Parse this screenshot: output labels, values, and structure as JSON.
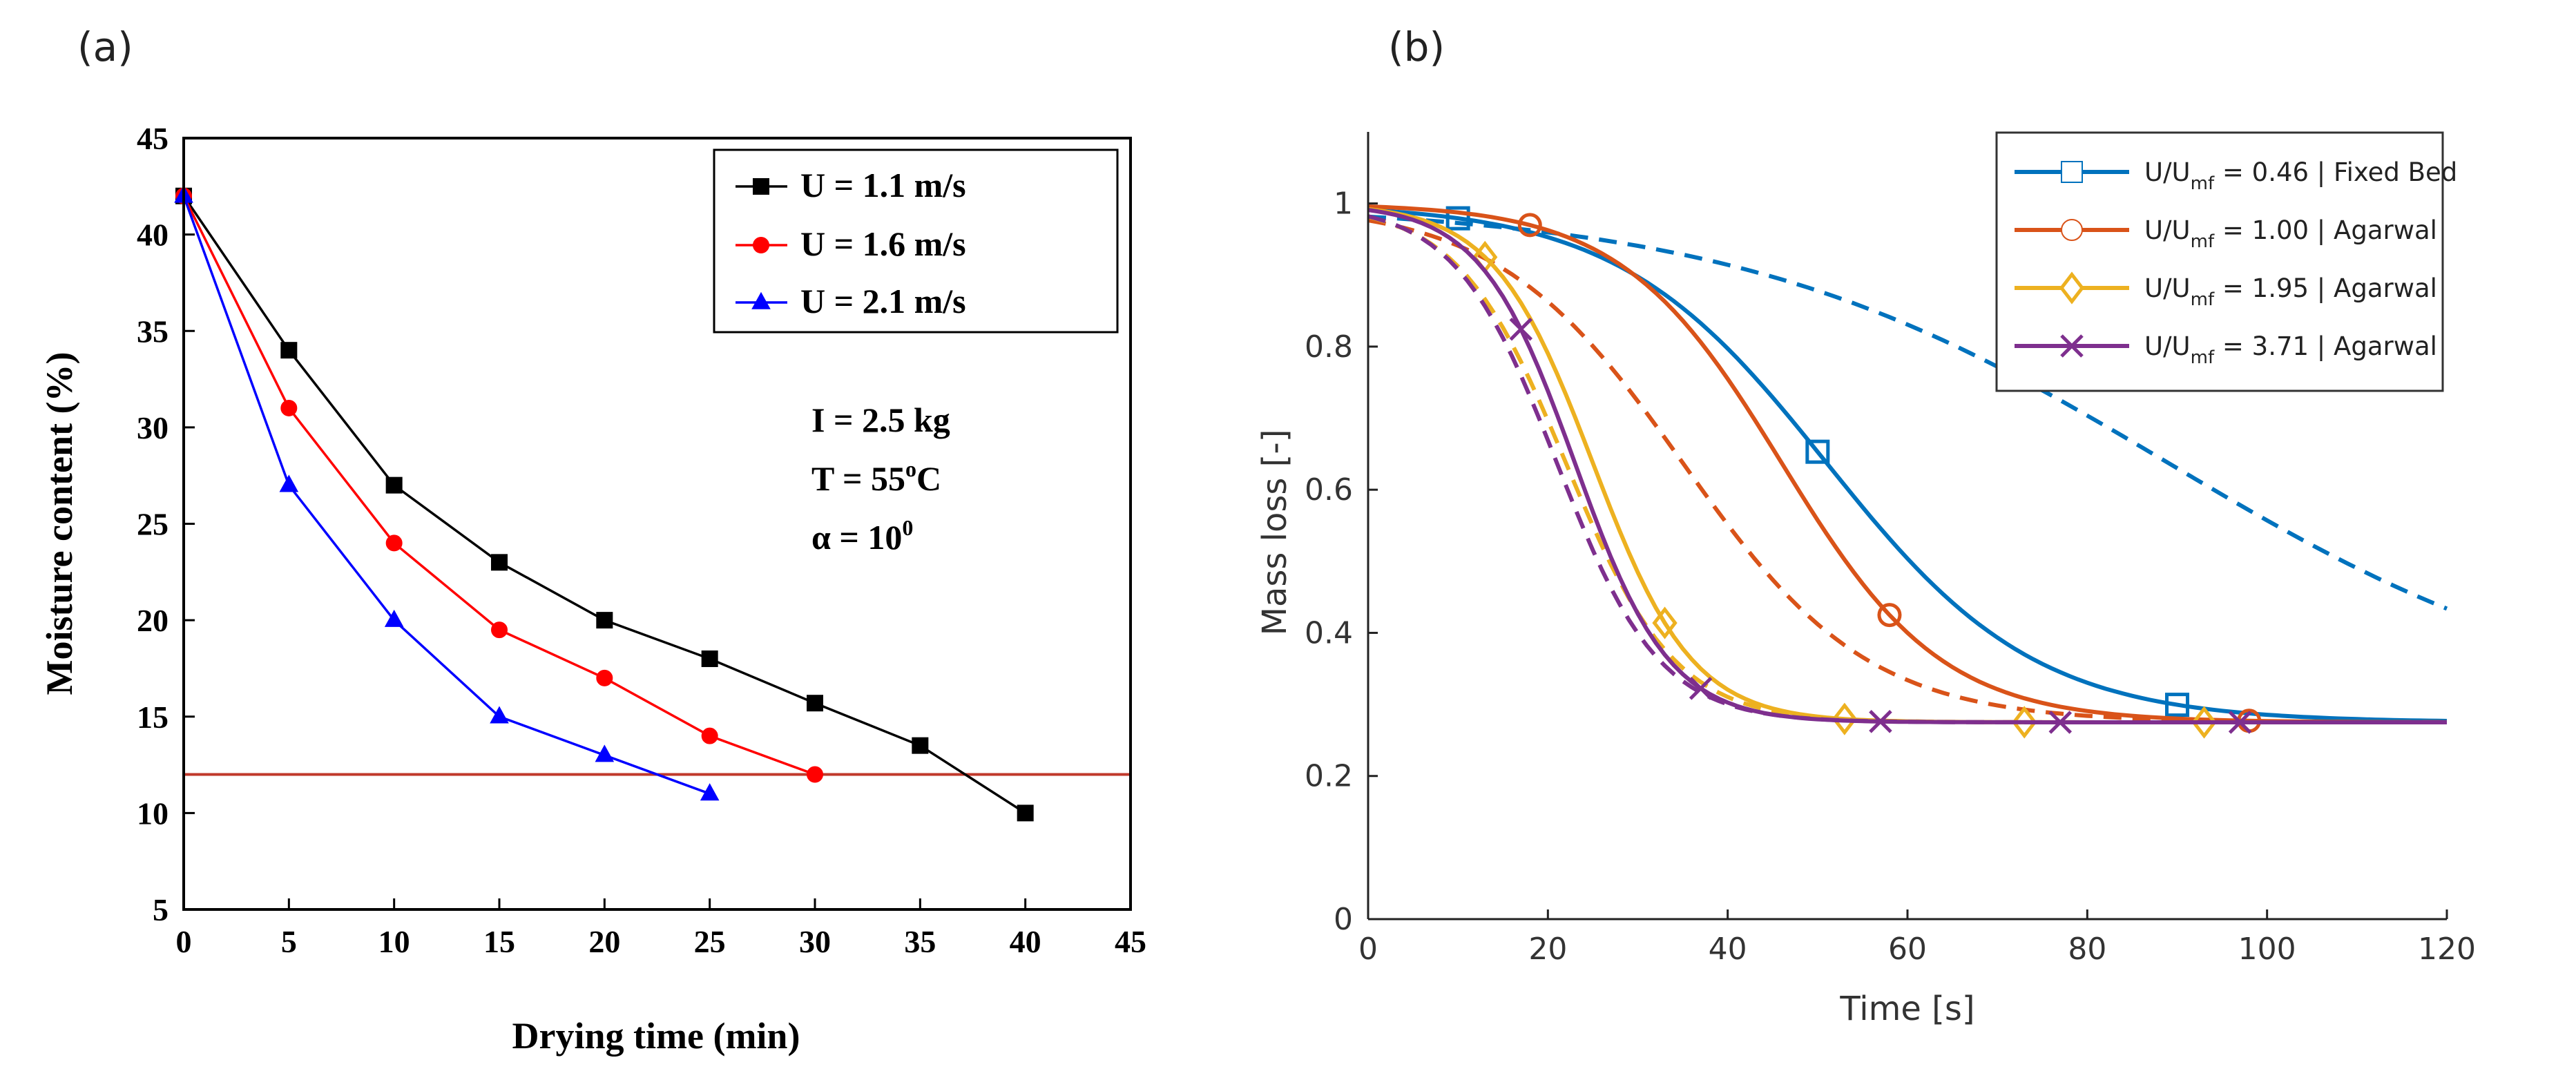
{
  "panel_labels": {
    "a": "(a)",
    "b": "(b)"
  },
  "chart_data": [
    {
      "type": "line",
      "id": "a",
      "title": "",
      "xlabel": "Drying time (min)",
      "ylabel": "Moisture content (%)",
      "xlim": [
        0,
        45
      ],
      "ylim": [
        5,
        45
      ],
      "xticks": [
        0,
        5,
        10,
        15,
        20,
        25,
        30,
        35,
        40,
        45
      ],
      "yticks": [
        5,
        10,
        15,
        20,
        25,
        30,
        35,
        40,
        45
      ],
      "grid": false,
      "legend_position": "top-right",
      "series": [
        {
          "name": "U = 1.1 m/s",
          "color": "#000000",
          "marker": "square",
          "x": [
            0,
            5,
            10,
            15,
            20,
            25,
            30,
            35,
            40
          ],
          "y": [
            42,
            34,
            27,
            23,
            20,
            18,
            15.7,
            13.5,
            10
          ]
        },
        {
          "name": "U = 1.6 m/s",
          "color": "#ff0000",
          "marker": "circle",
          "x": [
            0,
            5,
            10,
            15,
            20,
            25,
            30
          ],
          "y": [
            42,
            31,
            24,
            19.5,
            17,
            14,
            12
          ]
        },
        {
          "name": "U = 2.1 m/s",
          "color": "#0000ff",
          "marker": "triangle",
          "x": [
            0,
            5,
            10,
            15,
            20,
            25
          ],
          "y": [
            42,
            27,
            20,
            15,
            13,
            11
          ]
        }
      ],
      "reference_line": {
        "y": 12,
        "color": "#c0392b"
      },
      "annotations": {
        "line1": {
          "text": "I = 2.5 kg"
        },
        "line2": {
          "base": "T = 55",
          "sup": "o",
          "tail": "C"
        },
        "line3": {
          "base": "α = 10",
          "sup": "0"
        }
      }
    },
    {
      "type": "line",
      "id": "b",
      "title": "",
      "xlabel": "Time [s]",
      "ylabel": "Mass loss [-]",
      "xlim": [
        0,
        120
      ],
      "ylim": [
        0,
        1.1
      ],
      "xticks": [
        0,
        20,
        40,
        60,
        80,
        100,
        120
      ],
      "yticks": [
        0,
        0.2,
        0.4,
        0.6,
        0.8,
        1
      ],
      "ytick_labels": [
        "0",
        "0.2",
        "0.4",
        "0.6",
        "0.8",
        "1"
      ],
      "grid": false,
      "legend_position": "top-right",
      "series": [
        {
          "name": "U/Umf = 0.46 | Fixed Bed",
          "legend": {
            "pre": "U/U",
            "sub": "mf",
            "post": " = 0.46 | Fixed Bed"
          },
          "color": "#0072bd",
          "marker": "square",
          "solid": {
            "t0": 51,
            "k": 0.086
          },
          "dashed": {
            "t0": 89,
            "k": 0.041
          },
          "marker_x": [
            10,
            50,
            90
          ]
        },
        {
          "name": "U/Umf = 1.00 | Agarwal",
          "legend": {
            "pre": "U/U",
            "sub": "mf",
            "post": " = 1.00 | Agarwal"
          },
          "color": "#d95319",
          "marker": "circle",
          "solid": {
            "t0": 46,
            "k": 0.112
          },
          "dashed": {
            "t0": 35,
            "k": 0.097
          },
          "marker_x": [
            18,
            58,
            98
          ]
        },
        {
          "name": "U/Umf = 1.95 | Agarwal",
          "legend": {
            "pre": "U/U",
            "sub": "mf",
            "post": " = 1.95 | Agarwal"
          },
          "color": "#edb120",
          "marker": "diamond",
          "solid": {
            "t0": 25,
            "k": 0.18
          },
          "dashed": {
            "t0": 22,
            "k": 0.165
          },
          "marker_x": [
            13,
            33,
            53,
            73,
            93
          ]
        },
        {
          "name": "U/Umf = 3.71 | Agarwal",
          "legend": {
            "pre": "U/U",
            "sub": "mf",
            "post": " = 3.71 | Agarwal"
          },
          "color": "#7e2f8e",
          "marker": "x",
          "solid": {
            "t0": 23,
            "k": 0.19
          },
          "dashed": {
            "t0": 21,
            "k": 0.175
          },
          "marker_x": [
            17,
            37,
            57,
            77,
            97
          ]
        }
      ],
      "model": {
        "a": 0.275,
        "b": 0.725
      }
    }
  ]
}
